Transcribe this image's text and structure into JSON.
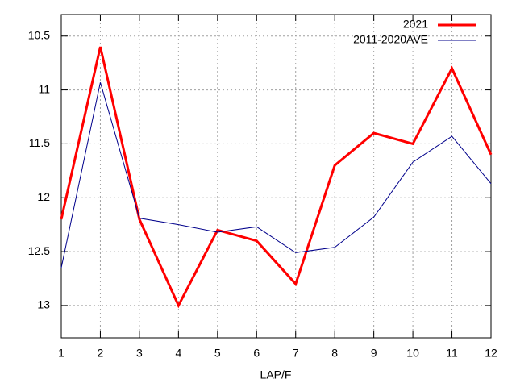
{
  "chart_data": {
    "type": "line",
    "x_label": "LAP/F",
    "x": [
      1,
      2,
      3,
      4,
      5,
      6,
      7,
      8,
      9,
      10,
      11,
      12
    ],
    "series": [
      {
        "name": "2021",
        "color": "#ff0000",
        "width": 3,
        "values": [
          12.2,
          10.6,
          12.2,
          13.0,
          12.3,
          12.4,
          12.8,
          11.7,
          11.4,
          11.5,
          10.8,
          11.6
        ]
      },
      {
        "name": "2011-2020AVE",
        "color": "#00008b",
        "width": 1,
        "values": [
          12.65,
          10.93,
          12.19,
          12.25,
          12.32,
          12.27,
          12.51,
          12.46,
          12.18,
          11.67,
          11.43,
          11.87
        ]
      }
    ],
    "xlim": [
      1,
      12
    ],
    "xticks": [
      1,
      2,
      3,
      4,
      5,
      6,
      7,
      8,
      9,
      10,
      11,
      12
    ],
    "ylim": [
      13.3,
      10.3
    ],
    "yticks": [
      10.5,
      11,
      11.5,
      12,
      12.5,
      13
    ],
    "grid": true,
    "legend": "top-right"
  }
}
